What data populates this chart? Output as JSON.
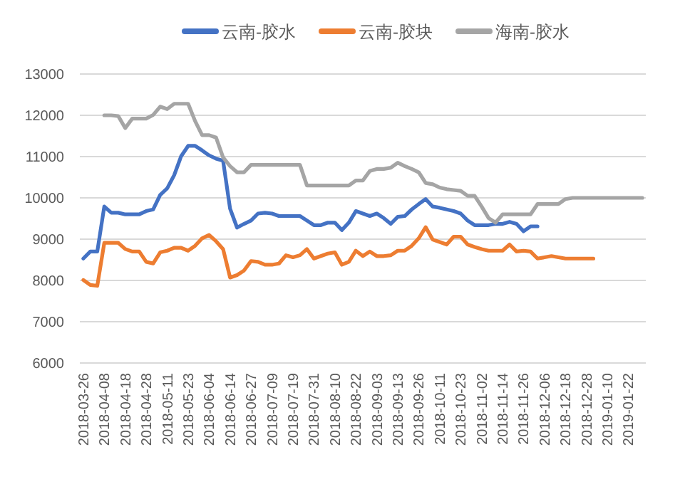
{
  "chart_data": {
    "type": "line",
    "categories": [
      "2018-03-26",
      null,
      null,
      "2018-04-08",
      null,
      null,
      "2018-04-18",
      null,
      null,
      "2018-04-28",
      null,
      null,
      "2018-05-11",
      null,
      null,
      "2018-05-23",
      null,
      null,
      "2018-06-04",
      null,
      null,
      "2018-06-14",
      null,
      null,
      "2018-06-27",
      null,
      null,
      "2018-07-09",
      null,
      null,
      "2018-07-19",
      null,
      null,
      "2018-07-31",
      null,
      null,
      "2018-08-10",
      null,
      null,
      "2018-08-22",
      null,
      null,
      "2018-09-03",
      null,
      null,
      "2018-09-13",
      null,
      null,
      "2018-09-26",
      null,
      null,
      "2018-10-11",
      null,
      null,
      "2018-10-23",
      null,
      null,
      "2018-11-02",
      null,
      null,
      "2018-11-14",
      null,
      null,
      "2018-11-26",
      null,
      null,
      "2018-12-06",
      null,
      null,
      "2018-12-18",
      null,
      null,
      "2018-12-28",
      null,
      null,
      "2019-01-10",
      null,
      null,
      "2019-01-22",
      null,
      null
    ],
    "series": [
      {
        "name": "云南-胶水",
        "color": "#4472c4",
        "values": [
          8530,
          8700,
          8700,
          9790,
          9640,
          9640,
          9600,
          9600,
          9600,
          9680,
          9720,
          10070,
          10230,
          10550,
          11010,
          11260,
          11260,
          11150,
          11030,
          10950,
          10900,
          9740,
          9280,
          9370,
          9450,
          9620,
          9640,
          9620,
          9560,
          9560,
          9560,
          9560,
          9450,
          9340,
          9340,
          9400,
          9400,
          9220,
          9400,
          9680,
          9620,
          9560,
          9620,
          9510,
          9370,
          9540,
          9560,
          9720,
          9850,
          9970,
          9790,
          9760,
          9720,
          9680,
          9620,
          9450,
          9340,
          9340,
          9340,
          9370,
          9370,
          9420,
          9370,
          9190,
          9310,
          9310,
          null,
          null,
          null,
          null,
          null,
          null,
          null,
          null,
          null,
          null,
          null,
          null,
          null,
          null,
          null
        ]
      },
      {
        "name": "云南-胶块",
        "color": "#ed7d31",
        "values": [
          8010,
          7890,
          7870,
          8910,
          8910,
          8910,
          8760,
          8700,
          8700,
          8450,
          8410,
          8680,
          8720,
          8790,
          8790,
          8720,
          8840,
          9020,
          9100,
          8950,
          8760,
          8070,
          8130,
          8240,
          8470,
          8450,
          8380,
          8380,
          8410,
          8610,
          8560,
          8610,
          8760,
          8530,
          8590,
          8650,
          8680,
          8380,
          8450,
          8720,
          8590,
          8700,
          8590,
          8590,
          8610,
          8720,
          8720,
          8840,
          9020,
          9290,
          8990,
          8930,
          8870,
          9060,
          9060,
          8870,
          8810,
          8760,
          8720,
          8720,
          8720,
          8870,
          8700,
          8720,
          8700,
          8530,
          8560,
          8590,
          8560,
          8530,
          8530,
          8530,
          8530,
          8530,
          null,
          null,
          null,
          null,
          null,
          null,
          null
        ]
      },
      {
        "name": "海南-胶水",
        "color": "#a5a5a5",
        "values": [
          null,
          null,
          null,
          12000,
          12000,
          11980,
          11690,
          11920,
          11920,
          11920,
          12010,
          12210,
          12150,
          12280,
          12280,
          12280,
          11860,
          11520,
          11520,
          11460,
          10980,
          10770,
          10620,
          10620,
          10800,
          10800,
          10800,
          10800,
          10800,
          10800,
          10800,
          10800,
          10300,
          10300,
          10300,
          10300,
          10300,
          10300,
          10300,
          10420,
          10420,
          10650,
          10700,
          10700,
          10730,
          10850,
          10770,
          10700,
          10620,
          10360,
          10330,
          10250,
          10210,
          10190,
          10170,
          10050,
          10050,
          9790,
          9510,
          9400,
          9600,
          9600,
          9600,
          9600,
          9600,
          9850,
          9850,
          9850,
          9850,
          9970,
          10000,
          10000,
          10000,
          10000,
          10000,
          10000,
          10000,
          10000,
          10000,
          10000,
          10000
        ]
      }
    ],
    "ylim": [
      6000,
      13000
    ],
    "yticks": [
      6000,
      7000,
      8000,
      9000,
      10000,
      11000,
      12000,
      13000
    ],
    "grid": "y",
    "legend": "top"
  }
}
